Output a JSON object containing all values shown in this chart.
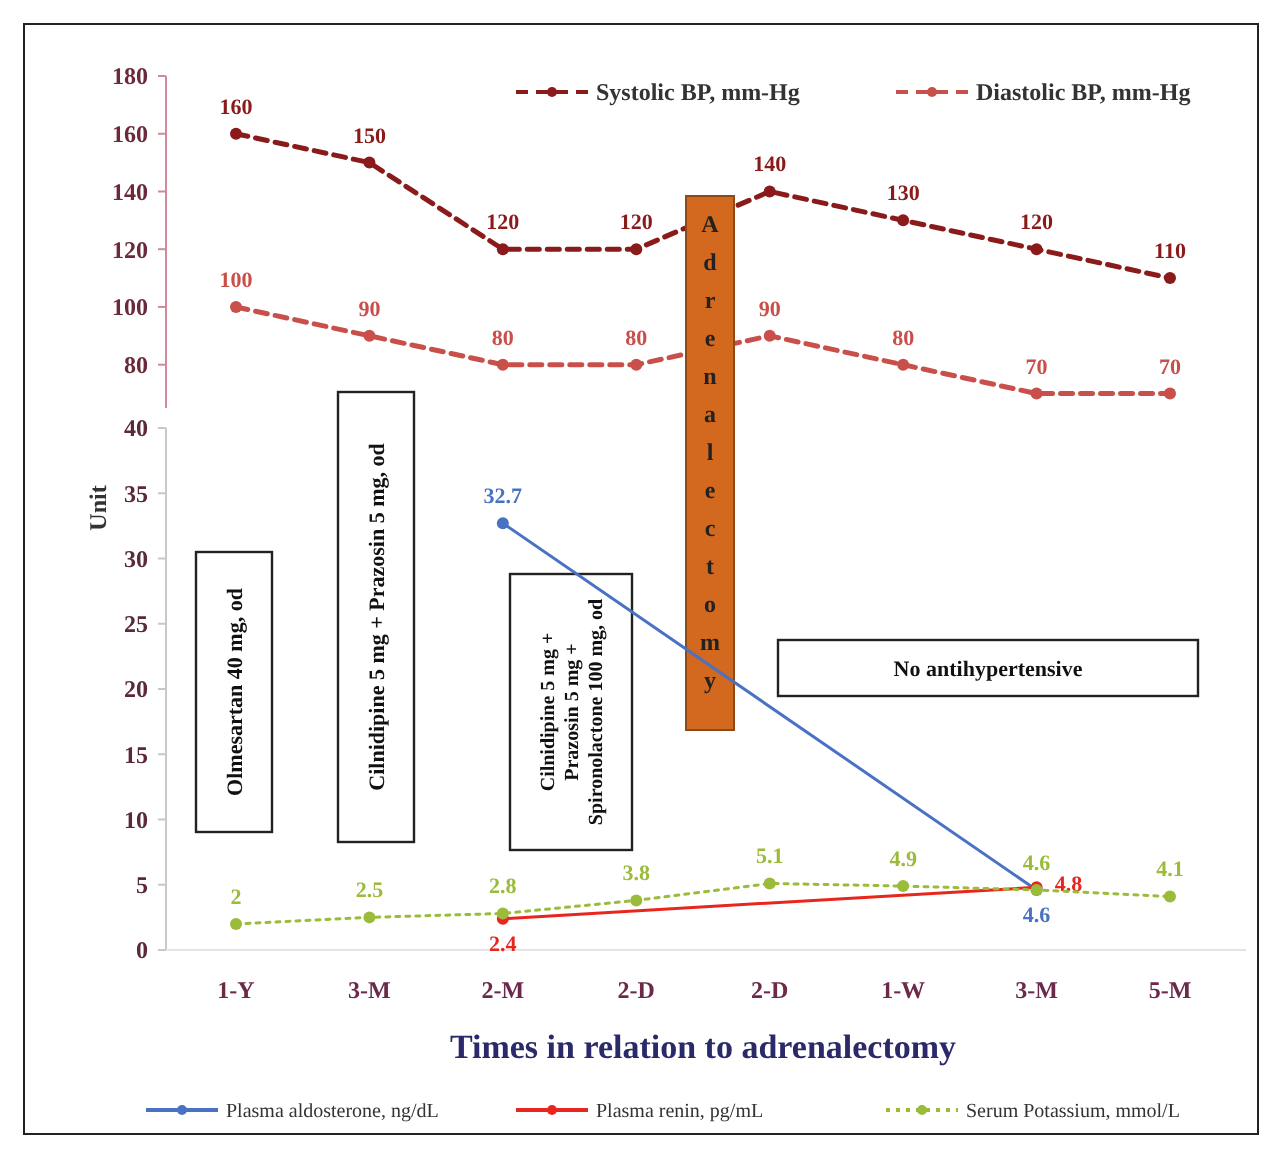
{
  "chart_data": [
    {
      "type": "line",
      "categories": [
        null,
        null,
        null,
        null,
        null,
        null,
        null,
        null
      ],
      "series": [
        {
          "name": "Systolic BP, mm-Hg",
          "color": "#8b1a1a",
          "values": [
            160,
            150,
            120,
            120,
            140,
            130,
            120,
            110
          ]
        },
        {
          "name": "Diastolic BP, mm-Hg",
          "color": "#c9504a",
          "values": [
            100,
            90,
            80,
            80,
            90,
            80,
            70,
            70
          ]
        }
      ],
      "ylim": [
        65,
        180
      ],
      "yticks": [
        80,
        100,
        120,
        140,
        160,
        180
      ],
      "tick_labels": "y",
      "legend": "top right",
      "data_labels": true,
      "marker": "circle",
      "line_style": "dashed"
    },
    {
      "type": "line",
      "categories": [
        "1-Y",
        "3-M",
        "2-M",
        "2-D",
        "2-D",
        "1-W",
        "3-M",
        "5-M"
      ],
      "xlabel": "Times in relation to adrenalectomy",
      "ylabel": "Unit",
      "series": [
        {
          "name": "Plasma aldosterone, ng/dL",
          "color": "#4a72c4",
          "values": [
            null,
            null,
            32.7,
            null,
            null,
            null,
            4.6,
            null
          ]
        },
        {
          "name": "Plasma renin, pg/mL",
          "color": "#e8261e",
          "values": [
            null,
            null,
            2.4,
            null,
            null,
            null,
            4.8,
            null
          ]
        },
        {
          "name": "Serum Potassium, mmol/L",
          "color": "#9bbb3a",
          "line_style": "dotted",
          "values": [
            2,
            2.5,
            2.8,
            3.8,
            5.1,
            4.9,
            4.6,
            4.1
          ]
        }
      ],
      "ylim": [
        0,
        40
      ],
      "yticks": [
        0,
        5,
        10,
        15,
        20,
        25,
        30,
        35,
        40
      ],
      "legend": "bottom",
      "data_labels": true,
      "marker": "circle",
      "line_style": "solid",
      "annotations": [
        "Olmesartan 40 mg, od",
        "Cilnidipine 5 mg + Prazosin 5 mg, od",
        "Cilnidipine 5 mg +\nPrazosin 5 mg +\nSpironolactone 100 mg, od",
        "Adrenalectomy",
        "No antihypertensive"
      ]
    }
  ]
}
